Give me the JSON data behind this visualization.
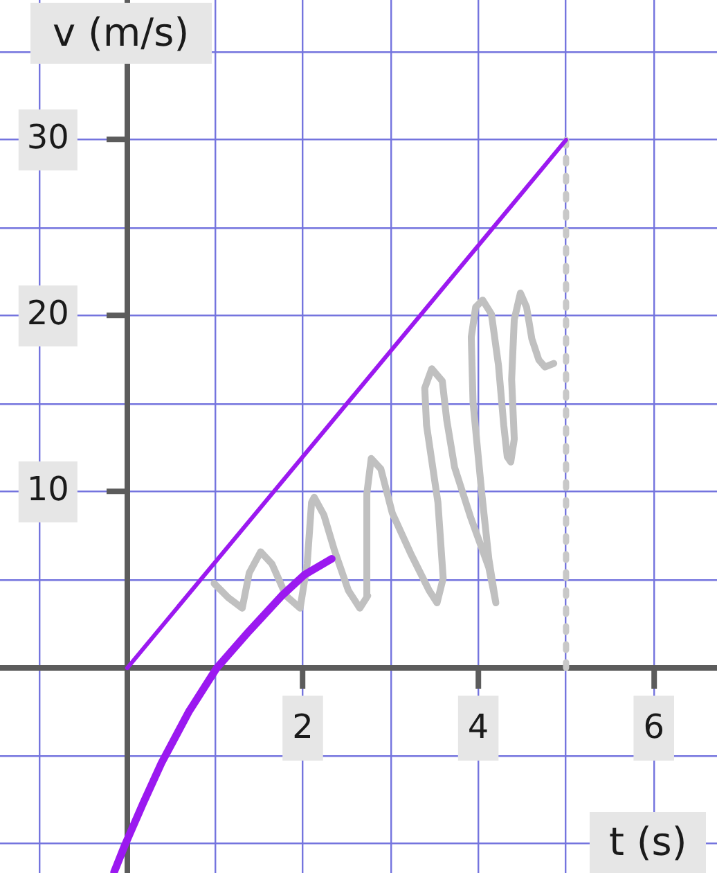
{
  "chart_data": {
    "type": "line",
    "xlabel": "t (s)",
    "ylabel": "v (m/s)",
    "xlim": [
      -1.45,
      6.72
    ],
    "ylim": [
      -11.65,
      37.95
    ],
    "xticks": [
      {
        "value": -1,
        "label": null
      },
      {
        "value": 0,
        "label": null
      },
      {
        "value": 1,
        "label": null
      },
      2,
      {
        "value": 3,
        "label": null
      },
      4,
      {
        "value": 5,
        "label": null
      },
      6
    ],
    "yticks": [
      {
        "value": -10,
        "label": null
      },
      {
        "value": -5,
        "label": null
      },
      {
        "value": 0,
        "label": null
      },
      {
        "value": 5,
        "label": null
      },
      10,
      {
        "value": 15,
        "label": null
      },
      20,
      {
        "value": 25,
        "label": null
      },
      30,
      {
        "value": 35,
        "label": null
      }
    ],
    "grid": true,
    "legend": false,
    "marker": "none",
    "line_style": "solid",
    "series": [
      {
        "color": "#9b19f0",
        "x": [
          0,
          5
        ],
        "values": [
          0,
          30
        ]
      },
      {
        "color": "#9b19f0",
        "x": [
          -0.15,
          -0.03,
          0.18,
          0.39,
          0.7,
          1.02,
          1.39,
          1.76,
          2.02,
          2.33
        ],
        "values": [
          -11.6,
          -10.1,
          -7.7,
          -5.4,
          -2.5,
          0,
          2.1,
          4.1,
          5.3,
          6.2
        ]
      },
      {
        "color": "#c0c0c0",
        "x": [
          0.99,
          1.15,
          1.31,
          1.39,
          1.52,
          1.65,
          1.81,
          1.97,
          2.05,
          2.1,
          2.13,
          2.24,
          2.36,
          2.52,
          2.65,
          2.74,
          2.73,
          2.78,
          2.89,
          3.02,
          3.23,
          3.44,
          3.53,
          3.6,
          3.54,
          3.41,
          3.39,
          3.47,
          3.59,
          3.64,
          3.73,
          3.91,
          4.12,
          4.2,
          4.12,
          4.04,
          3.94,
          3.92,
          3.97,
          4.05,
          4.15,
          4.23,
          4.29,
          4.33,
          4.37,
          4.41,
          4.38,
          4.41,
          4.48,
          4.55,
          4.61,
          4.69,
          4.76,
          4.86
        ],
        "values": [
          4.8,
          4.0,
          3.4,
          5.4,
          6.6,
          5.9,
          4.1,
          3.4,
          5.9,
          9.4,
          9.7,
          8.7,
          6.7,
          4.4,
          3.4,
          4.1,
          9.9,
          11.9,
          11.3,
          8.8,
          6.5,
          4.4,
          3.7,
          5.1,
          9.4,
          13.8,
          15.9,
          17.0,
          16.3,
          14.1,
          11.4,
          8.6,
          5.7,
          3.7,
          6.2,
          9.9,
          15.1,
          18.8,
          20.5,
          20.9,
          20.1,
          17.2,
          13.8,
          12.0,
          11.7,
          13.0,
          16.4,
          19.8,
          21.3,
          20.5,
          18.7,
          17.5,
          17.1,
          17.3
        ]
      },
      {
        "color": "#c8c8c8",
        "x": [
          5,
          5
        ],
        "values": [
          0,
          30
        ],
        "line_style": "dashed"
      }
    ]
  }
}
